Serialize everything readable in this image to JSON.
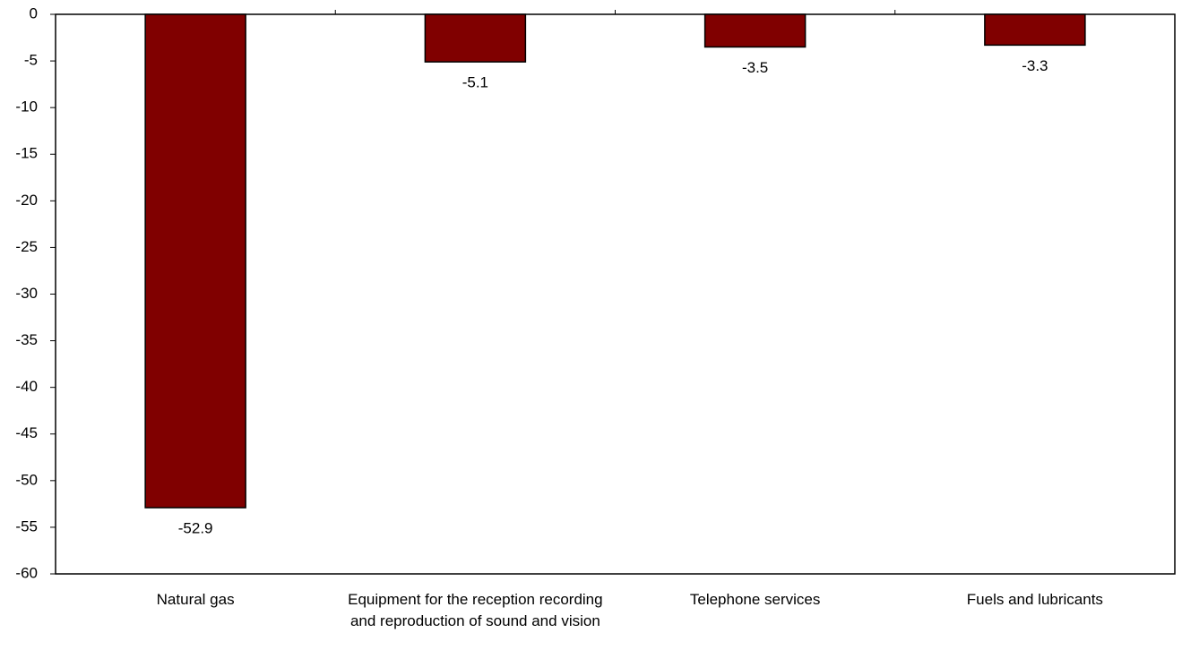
{
  "chart_data": {
    "type": "bar",
    "categories": [
      "Natural gas",
      "Equipment for the reception recording and reproduction of sound and vision",
      "Telephone services",
      "Fuels and lubricants"
    ],
    "values": [
      -52.9,
      -5.1,
      -3.5,
      -3.3
    ],
    "color": "#800000",
    "ylim": [
      0,
      -60
    ],
    "yticks": [
      0,
      -5,
      -10,
      -15,
      -20,
      -25,
      -30,
      -35,
      -40,
      -45,
      -50,
      -55,
      -60
    ]
  }
}
